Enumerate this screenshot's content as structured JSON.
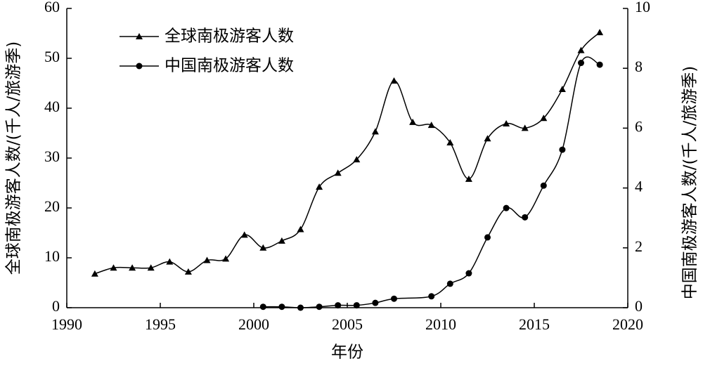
{
  "chart_data": {
    "type": "line",
    "x_label": "年份",
    "y_label": "全球南极游客人数/(千人/旅游季)",
    "y2_label": "中国南极游客人数/(千人/旅游季)",
    "xlim": [
      1990,
      2020
    ],
    "xticks": [
      1990,
      1995,
      2000,
      2005,
      2010,
      2015,
      2020
    ],
    "ylim": [
      0,
      60
    ],
    "yticks": [
      0,
      10,
      20,
      30,
      40,
      50,
      60
    ],
    "y2lim": [
      0,
      10
    ],
    "y2ticks": [
      0,
      2,
      4,
      6,
      8,
      10
    ],
    "legend": "upper left",
    "series": [
      {
        "name": "全球南极游客人数",
        "color": "#000000",
        "marker": "triangle",
        "x": [
          1991.5,
          1992.5,
          1993.5,
          1994.5,
          1995.5,
          1996.5,
          1997.5,
          1998.5,
          1999.5,
          2000.5,
          2001.5,
          2002.5,
          2003.5,
          2004.5,
          2005.5,
          2006.5,
          2007.5,
          2008.5,
          2009.5,
          2010.5,
          2011.5,
          2012.5,
          2013.5,
          2014.5,
          2015.5,
          2016.5,
          2017.5,
          2018.5
        ],
        "values": [
          6.8,
          8.0,
          8.0,
          8.0,
          9.2,
          7.2,
          9.5,
          9.8,
          14.6,
          12.0,
          13.4,
          15.7,
          24.2,
          27.0,
          29.7,
          35.3,
          45.5,
          37.2,
          36.6,
          33.1,
          25.8,
          33.9,
          36.9,
          36.0,
          38.0,
          43.8,
          51.6,
          55.2
        ]
      },
      {
        "name": "中国南极游客人数",
        "color": "#000000",
        "marker": "circle",
        "axis": "y2",
        "x": [
          2000.5,
          2001.5,
          2002.5,
          2003.5,
          2004.5,
          2005.5,
          2006.5,
          2007.5,
          2009.5,
          2010.5,
          2011.5,
          2012.5,
          2013.5,
          2014.5,
          2015.5,
          2016.5,
          2017.5,
          2018.5
        ],
        "values": [
          0.03,
          0.03,
          0.0,
          0.03,
          0.08,
          0.08,
          0.16,
          0.3,
          0.38,
          0.8,
          1.15,
          2.35,
          3.33,
          3.02,
          4.08,
          5.28,
          8.18,
          8.12
        ]
      }
    ]
  }
}
